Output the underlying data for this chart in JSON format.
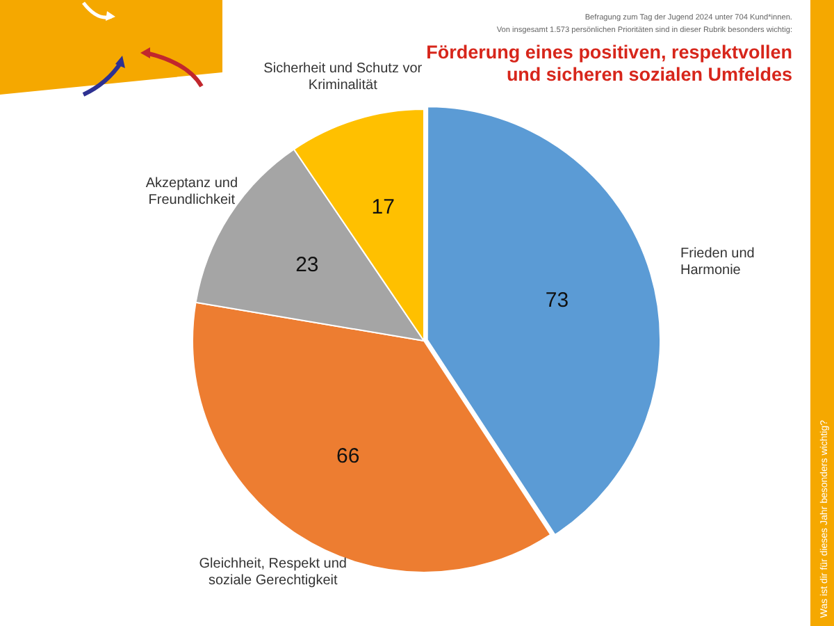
{
  "chart_data": {
    "type": "pie",
    "title": "Förderung eines positiven, respektvollen und sicheren sozialen Umfeldes",
    "categories": [
      "Frieden und Harmonie",
      "Gleichheit, Respekt und soziale Gerechtigkeit",
      "Akzeptanz und Freundlichkeit",
      "Sicherheit und Schutz vor Kriminalität"
    ],
    "values": [
      73,
      66,
      23,
      17
    ],
    "colors": [
      "#5b9bd5",
      "#ed7d31",
      "#a5a5a5",
      "#ffc000"
    ],
    "data_labels": true,
    "legend": false,
    "annotations": [
      "Befragung zum Tag der Jugend 2024 unter 704 Kund*innen.",
      "Von insgesamt 1.573 persönlichen Prioritäten sind in dieser Rubrik besonders wichtig:",
      "Was ist dir für dieses Jahr besonders wichtig?"
    ]
  }
}
